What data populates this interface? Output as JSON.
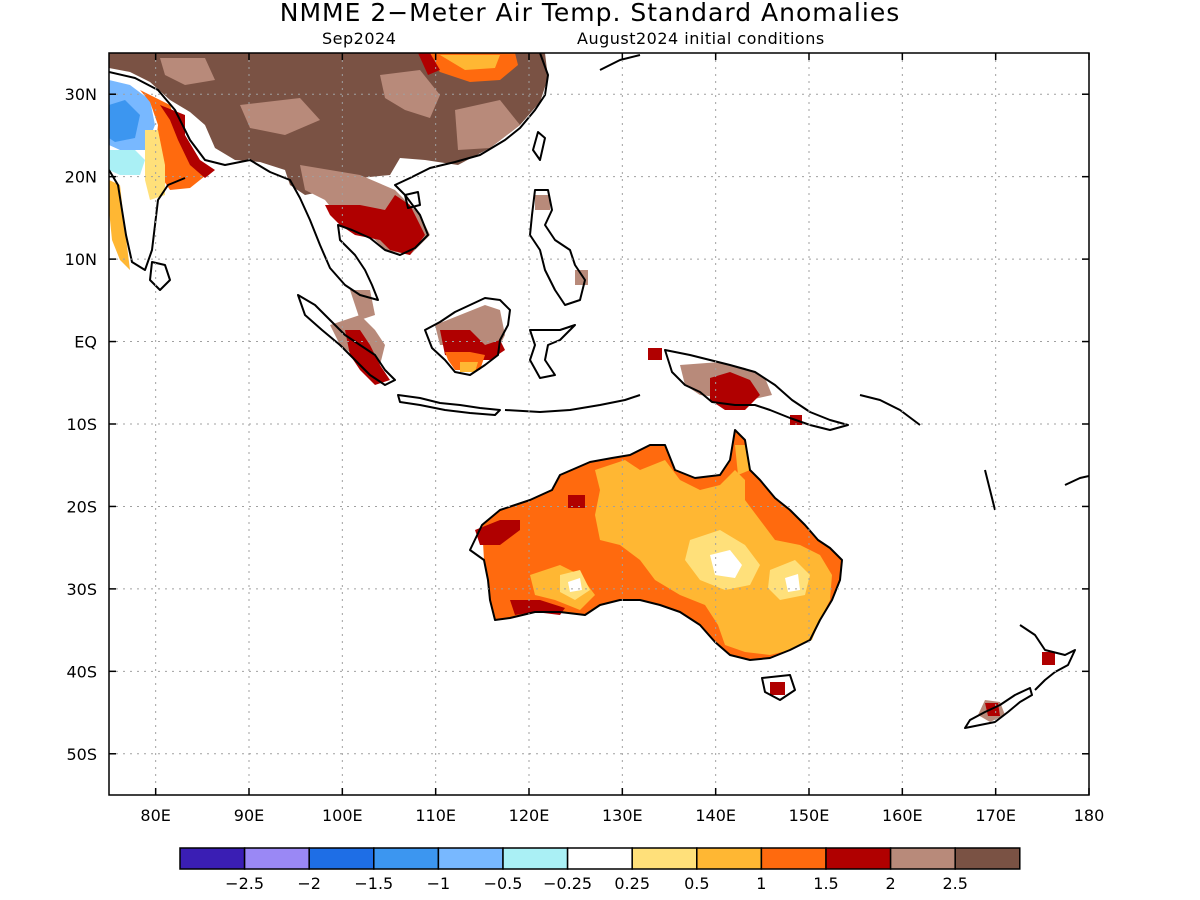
{
  "header": {
    "title": "NMME 2−Meter Air Temp. Standard Anomalies",
    "target_month": "Sep2024",
    "init_conditions": "August2024 initial conditions"
  },
  "map": {
    "lon_range": [
      75,
      180
    ],
    "lat_range": [
      -55,
      35
    ],
    "lat_ticks": [
      {
        "value": 30,
        "label": "30N"
      },
      {
        "value": 20,
        "label": "20N"
      },
      {
        "value": 10,
        "label": "10N"
      },
      {
        "value": 0,
        "label": "EQ"
      },
      {
        "value": -10,
        "label": "10S"
      },
      {
        "value": -20,
        "label": "20S"
      },
      {
        "value": -30,
        "label": "30S"
      },
      {
        "value": -40,
        "label": "40S"
      },
      {
        "value": -50,
        "label": "50S"
      }
    ],
    "lon_ticks": [
      {
        "value": 80,
        "label": "80E"
      },
      {
        "value": 90,
        "label": "90E"
      },
      {
        "value": 100,
        "label": "100E"
      },
      {
        "value": 110,
        "label": "110E"
      },
      {
        "value": 120,
        "label": "120E"
      },
      {
        "value": 130,
        "label": "130E"
      },
      {
        "value": 140,
        "label": "140E"
      },
      {
        "value": 150,
        "label": "150E"
      },
      {
        "value": 160,
        "label": "160E"
      },
      {
        "value": 170,
        "label": "170E"
      },
      {
        "value": 180,
        "label": "180"
      }
    ],
    "grid": true,
    "colors": {
      "c_2": "#b00000",
      "c_25": "#b88a7a",
      "c_3": "#7a5244",
      "c_15": "#ff6a0e",
      "c_1": "#ffb733",
      "c_05": "#ffe07a",
      "c_m05": "#aaf0f5",
      "c_m1": "#78b8ff",
      "c_m15": "#3c96f0"
    }
  },
  "legend": {
    "colors": [
      "#3a1eb4",
      "#9a88f5",
      "#1e6ee6",
      "#3c96f0",
      "#78b8ff",
      "#aaf0f5",
      "#ffffff",
      "#ffe07a",
      "#ffb733",
      "#ff6a0e",
      "#b00000",
      "#b88a7a",
      "#7a5244"
    ],
    "labels": [
      "−2.5",
      "−2",
      "−1.5",
      "−1",
      "−0.5",
      "−0.25",
      "0.25",
      "0.5",
      "1",
      "1.5",
      "2",
      "2.5"
    ]
  }
}
